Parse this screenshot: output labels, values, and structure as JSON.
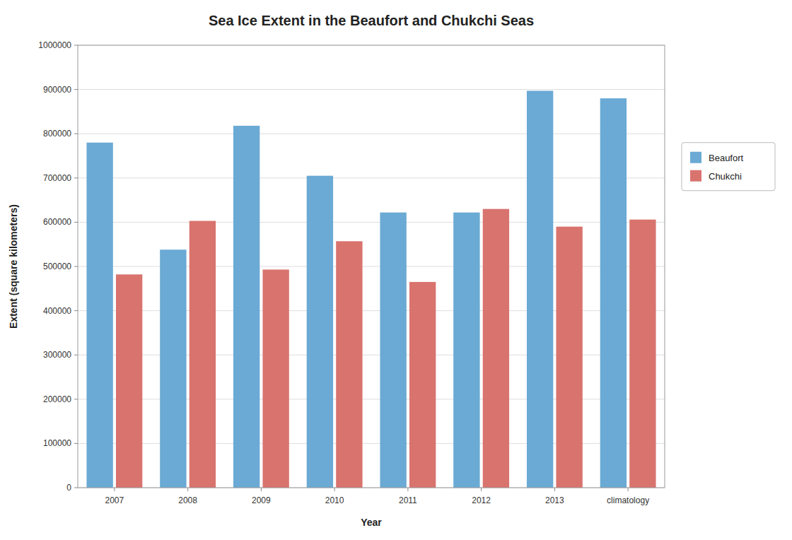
{
  "chart_data": {
    "type": "bar",
    "title": "Sea Ice Extent in the Beaufort and Chukchi Seas",
    "xlabel": "Year",
    "ylabel": "Extent (square kilometers)",
    "categories": [
      "2007",
      "2008",
      "2009",
      "2010",
      "2011",
      "2012",
      "2013",
      "climatology"
    ],
    "series": [
      {
        "name": "Beaufort",
        "color": "#6aaad4",
        "values": [
          780000,
          538000,
          818000,
          705000,
          622000,
          622000,
          897000,
          880000
        ]
      },
      {
        "name": "Chukchi",
        "color": "#d9736e",
        "values": [
          482000,
          603000,
          493000,
          557000,
          465000,
          630000,
          590000,
          606000
        ]
      }
    ],
    "ylim": [
      0,
      1000000
    ],
    "yticks": [
      0,
      100000,
      200000,
      300000,
      400000,
      500000,
      600000,
      700000,
      800000,
      900000,
      1000000
    ],
    "grid": true,
    "legend": "right"
  }
}
